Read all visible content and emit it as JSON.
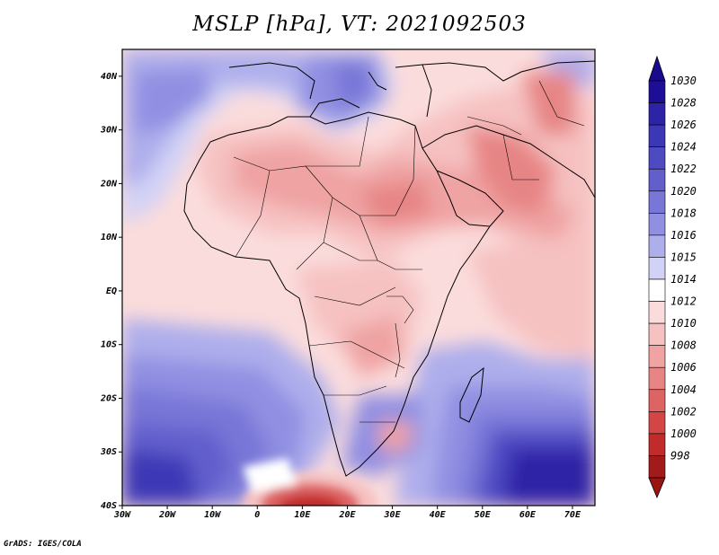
{
  "title": "MSLP [hPa], VT: 2021092503",
  "credit": "GrADS: IGES/COLA",
  "map": {
    "lat_range": [
      -40,
      45
    ],
    "lon_range": [
      -30,
      75
    ],
    "lat_ticks": [
      {
        "value": 40,
        "label": "40N"
      },
      {
        "value": 30,
        "label": "30N"
      },
      {
        "value": 20,
        "label": "20N"
      },
      {
        "value": 10,
        "label": "10N"
      },
      {
        "value": 0,
        "label": "EQ"
      },
      {
        "value": -10,
        "label": "10S"
      },
      {
        "value": -20,
        "label": "20S"
      },
      {
        "value": -30,
        "label": "30S"
      },
      {
        "value": -40,
        "label": "40S"
      }
    ],
    "lon_ticks": [
      {
        "value": -30,
        "label": "30W"
      },
      {
        "value": -20,
        "label": "20W"
      },
      {
        "value": -10,
        "label": "10W"
      },
      {
        "value": 0,
        "label": "0"
      },
      {
        "value": 10,
        "label": "10E"
      },
      {
        "value": 20,
        "label": "20E"
      },
      {
        "value": 30,
        "label": "30E"
      },
      {
        "value": 40,
        "label": "40E"
      },
      {
        "value": 50,
        "label": "50E"
      },
      {
        "value": 60,
        "label": "60E"
      },
      {
        "value": 70,
        "label": "70E"
      }
    ]
  },
  "colorbar": {
    "levels": [
      {
        "label": "1030",
        "color": "#1e0e96"
      },
      {
        "label": "1028",
        "color": "#2d23a6"
      },
      {
        "label": "1026",
        "color": "#3c37b5"
      },
      {
        "label": "1024",
        "color": "#4e4ac2"
      },
      {
        "label": "1022",
        "color": "#625fcd"
      },
      {
        "label": "1020",
        "color": "#7876d7"
      },
      {
        "label": "1018",
        "color": "#908fe2"
      },
      {
        "label": "1016",
        "color": "#aeaeec"
      },
      {
        "label": "1015",
        "color": "#d2d2f6"
      },
      {
        "label": "1014",
        "color": "#ffffff"
      },
      {
        "label": "1012",
        "color": "#fbdcdc"
      },
      {
        "label": "1010",
        "color": "#f6c1c1"
      },
      {
        "label": "1008",
        "color": "#efa3a3"
      },
      {
        "label": "1006",
        "color": "#e78585"
      },
      {
        "label": "1004",
        "color": "#de6464"
      },
      {
        "label": "1002",
        "color": "#d44646"
      },
      {
        "label": "1000",
        "color": "#c22b2b"
      },
      {
        "label": "998",
        "color": "#a31a1a"
      }
    ],
    "top_arrow_color": "#1a0a8c",
    "bottom_arrow_color": "#9b1414"
  }
}
